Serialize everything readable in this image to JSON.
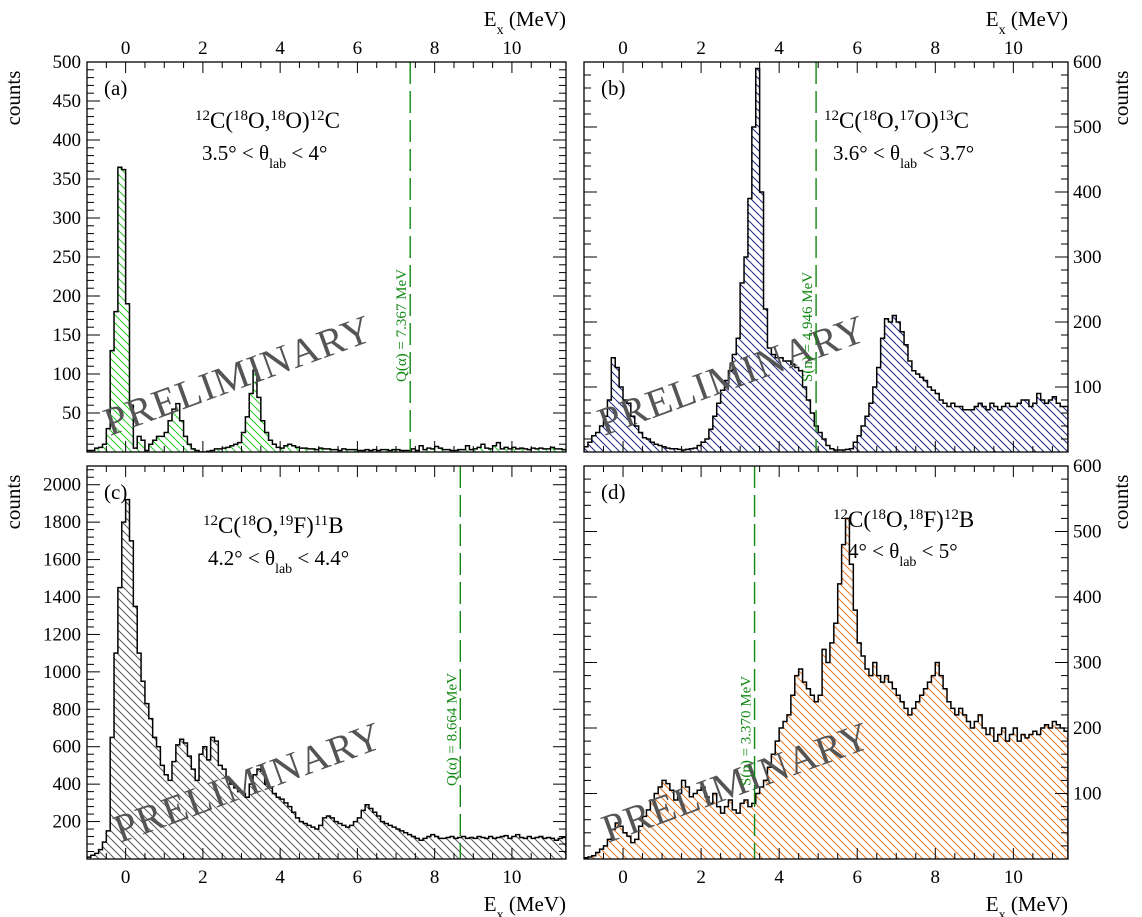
{
  "colors": {
    "a": "#22cc22",
    "b": "#1a237e",
    "c": "#555555",
    "d": "#e87722",
    "dash": "#118811",
    "watermark": "#555555"
  },
  "watermark": "PRELIMINARY",
  "axis": {
    "ex_label": "E",
    "ex_sub": "x",
    "ex_unit": " (MeV)",
    "counts": "counts"
  },
  "chart_data": [
    {
      "type": "bar",
      "panel": "a",
      "label": "(a)",
      "title": {
        "pre": "12",
        "a": "C(",
        "b": "18",
        "c": "O,",
        "d": "18",
        "e": "O)",
        "f": "12",
        "g": "C"
      },
      "angle": {
        "lo": "3.5° < θ",
        "sub": "lab",
        "hi": " < 4°"
      },
      "x_axis": "top",
      "y_side": "left",
      "xlim": [
        -1.0,
        11.4
      ],
      "ylim": [
        0,
        500
      ],
      "xticks": [
        0,
        2,
        4,
        6,
        8,
        10
      ],
      "yticks": [
        50,
        100,
        150,
        200,
        250,
        300,
        350,
        400,
        450,
        500
      ],
      "bin_start": -1.0,
      "bin_width": 0.1,
      "values": [
        2,
        2,
        5,
        6,
        10,
        30,
        130,
        180,
        365,
        362,
        190,
        60,
        5,
        20,
        15,
        2,
        10,
        15,
        20,
        20,
        25,
        40,
        55,
        62,
        40,
        20,
        10,
        4,
        2,
        0,
        0,
        1,
        2,
        4,
        4,
        5,
        6,
        8,
        10,
        12,
        25,
        45,
        75,
        105,
        70,
        40,
        25,
        15,
        10,
        6,
        5,
        8,
        10,
        8,
        6,
        5,
        5,
        4,
        4,
        3,
        5,
        4,
        4,
        3,
        3,
        2,
        4,
        3,
        3,
        3,
        2,
        2,
        3,
        2,
        3,
        2,
        3,
        3,
        2,
        3,
        3,
        2,
        2,
        2,
        4,
        2,
        8,
        3,
        5,
        4,
        7,
        5,
        3,
        3,
        2,
        2,
        3,
        3,
        8,
        3,
        4,
        6,
        10,
        5,
        4,
        8,
        12,
        4,
        6,
        4,
        6,
        4,
        5,
        4,
        3,
        5,
        4,
        5,
        4,
        4,
        6,
        4,
        4,
        3
      ],
      "line": {
        "x": 7.367,
        "text": "Q(α) = 7.367 MeV"
      }
    },
    {
      "type": "bar",
      "panel": "b",
      "label": "(b)",
      "title": {
        "pre": "12",
        "a": "C(",
        "b": "18",
        "c": "O,",
        "d": "17",
        "e": "O)",
        "f": "13",
        "g": "C"
      },
      "angle": {
        "lo": "3.6° < θ",
        "sub": "lab",
        "hi": " < 3.7°"
      },
      "x_axis": "top",
      "y_side": "right",
      "xlim": [
        -1.0,
        11.4
      ],
      "ylim": [
        0,
        600
      ],
      "xticks": [
        0,
        2,
        4,
        6,
        8,
        10
      ],
      "yticks": [
        100,
        200,
        300,
        400,
        500,
        600
      ],
      "bin_start": -1.0,
      "bin_width": 0.1,
      "values": [
        8,
        15,
        25,
        30,
        40,
        55,
        80,
        145,
        130,
        100,
        80,
        75,
        55,
        40,
        30,
        22,
        20,
        15,
        12,
        10,
        8,
        6,
        5,
        5,
        4,
        3,
        4,
        5,
        6,
        10,
        15,
        20,
        35,
        55,
        75,
        95,
        110,
        125,
        150,
        175,
        260,
        300,
        390,
        500,
        590,
        400,
        220,
        160,
        150,
        145,
        145,
        140,
        140,
        135,
        130,
        125,
        100,
        80,
        60,
        40,
        30,
        20,
        10,
        5,
        3,
        3,
        3,
        4,
        5,
        15,
        25,
        40,
        55,
        75,
        100,
        130,
        175,
        205,
        200,
        210,
        200,
        185,
        165,
        140,
        125,
        120,
        115,
        110,
        100,
        95,
        90,
        80,
        75,
        70,
        75,
        70,
        70,
        65,
        65,
        65,
        70,
        75,
        70,
        65,
        75,
        70,
        65,
        70,
        75,
        70,
        70,
        75,
        80,
        80,
        70,
        75,
        90,
        80,
        75,
        80,
        85,
        75,
        70,
        70
      ],
      "line": {
        "x": 4.946,
        "text": "S(n) = 4.946 MeV"
      }
    },
    {
      "type": "bar",
      "panel": "c",
      "label": "(c)",
      "title": {
        "pre": "12",
        "a": "C(",
        "b": "18",
        "c": "O,",
        "d": "19",
        "e": "F)",
        "f": "11",
        "g": "B"
      },
      "angle": {
        "lo": "4.2° < θ",
        "sub": "lab",
        "hi": " < 4.4°"
      },
      "x_axis": "bottom",
      "y_side": "left",
      "xlim": [
        -1.0,
        11.4
      ],
      "ylim": [
        0,
        2100
      ],
      "xticks": [
        0,
        2,
        4,
        6,
        8,
        10
      ],
      "yticks": [
        200,
        400,
        600,
        800,
        1000,
        1200,
        1400,
        1600,
        1800,
        2000
      ],
      "bin_start": -1.0,
      "bin_width": 0.1,
      "values": [
        10,
        20,
        30,
        50,
        90,
        150,
        650,
        1100,
        1450,
        1800,
        1920,
        1700,
        1350,
        1100,
        950,
        830,
        750,
        650,
        600,
        500,
        450,
        420,
        520,
        610,
        640,
        620,
        550,
        480,
        420,
        560,
        600,
        530,
        650,
        630,
        500,
        480,
        430,
        400,
        380,
        360,
        350,
        330,
        400,
        450,
        480,
        470,
        400,
        380,
        350,
        330,
        320,
        300,
        280,
        250,
        220,
        200,
        190,
        180,
        170,
        160,
        180,
        220,
        230,
        220,
        200,
        190,
        180,
        170,
        180,
        200,
        220,
        260,
        290,
        270,
        250,
        230,
        200,
        190,
        180,
        170,
        160,
        150,
        140,
        130,
        120,
        110,
        100,
        110,
        120,
        130,
        120,
        110,
        110,
        115,
        120,
        110,
        115,
        120,
        110,
        115,
        110,
        120,
        115,
        110,
        120,
        110,
        115,
        120,
        125,
        110,
        120,
        130,
        115,
        110,
        120,
        110,
        115,
        120,
        110,
        115,
        110,
        100,
        110,
        115
      ],
      "line": {
        "x": 8.664,
        "text": "Q(α) = 8.664 MeV"
      }
    },
    {
      "type": "bar",
      "panel": "d",
      "label": "(d)",
      "title": {
        "pre": "12",
        "a": "C(",
        "b": "18",
        "c": "O,",
        "d": "18",
        "e": "F)",
        "f": "12",
        "g": "B"
      },
      "angle": {
        "lo": "4° < θ",
        "sub": "lab",
        "hi": " < 5°"
      },
      "x_axis": "bottom",
      "y_side": "right",
      "xlim": [
        -1.0,
        11.4
      ],
      "ylim": [
        0,
        600
      ],
      "xticks": [
        0,
        2,
        4,
        6,
        8,
        10
      ],
      "yticks": [
        100,
        200,
        300,
        400,
        500,
        600
      ],
      "bin_start": -1.0,
      "bin_width": 0.1,
      "values": [
        2,
        3,
        5,
        10,
        15,
        20,
        30,
        45,
        55,
        50,
        40,
        35,
        25,
        30,
        50,
        65,
        75,
        90,
        100,
        110,
        120,
        115,
        105,
        90,
        100,
        120,
        110,
        95,
        100,
        105,
        110,
        95,
        85,
        100,
        80,
        70,
        80,
        90,
        75,
        70,
        85,
        90,
        80,
        85,
        100,
        110,
        120,
        140,
        160,
        180,
        200,
        210,
        220,
        250,
        280,
        290,
        270,
        260,
        250,
        240,
        250,
        320,
        300,
        330,
        360,
        420,
        480,
        520,
        450,
        380,
        330,
        310,
        290,
        280,
        300,
        280,
        270,
        280,
        270,
        260,
        250,
        240,
        230,
        220,
        230,
        240,
        250,
        260,
        270,
        280,
        300,
        280,
        260,
        240,
        230,
        220,
        230,
        220,
        210,
        200,
        210,
        220,
        200,
        190,
        200,
        180,
        190,
        200,
        180,
        190,
        200,
        180,
        190,
        185,
        190,
        195,
        190,
        200,
        205,
        200,
        210,
        205,
        200,
        195
      ],
      "line": {
        "x": 3.37,
        "text": "S(n) = 3.370 MeV"
      }
    }
  ]
}
